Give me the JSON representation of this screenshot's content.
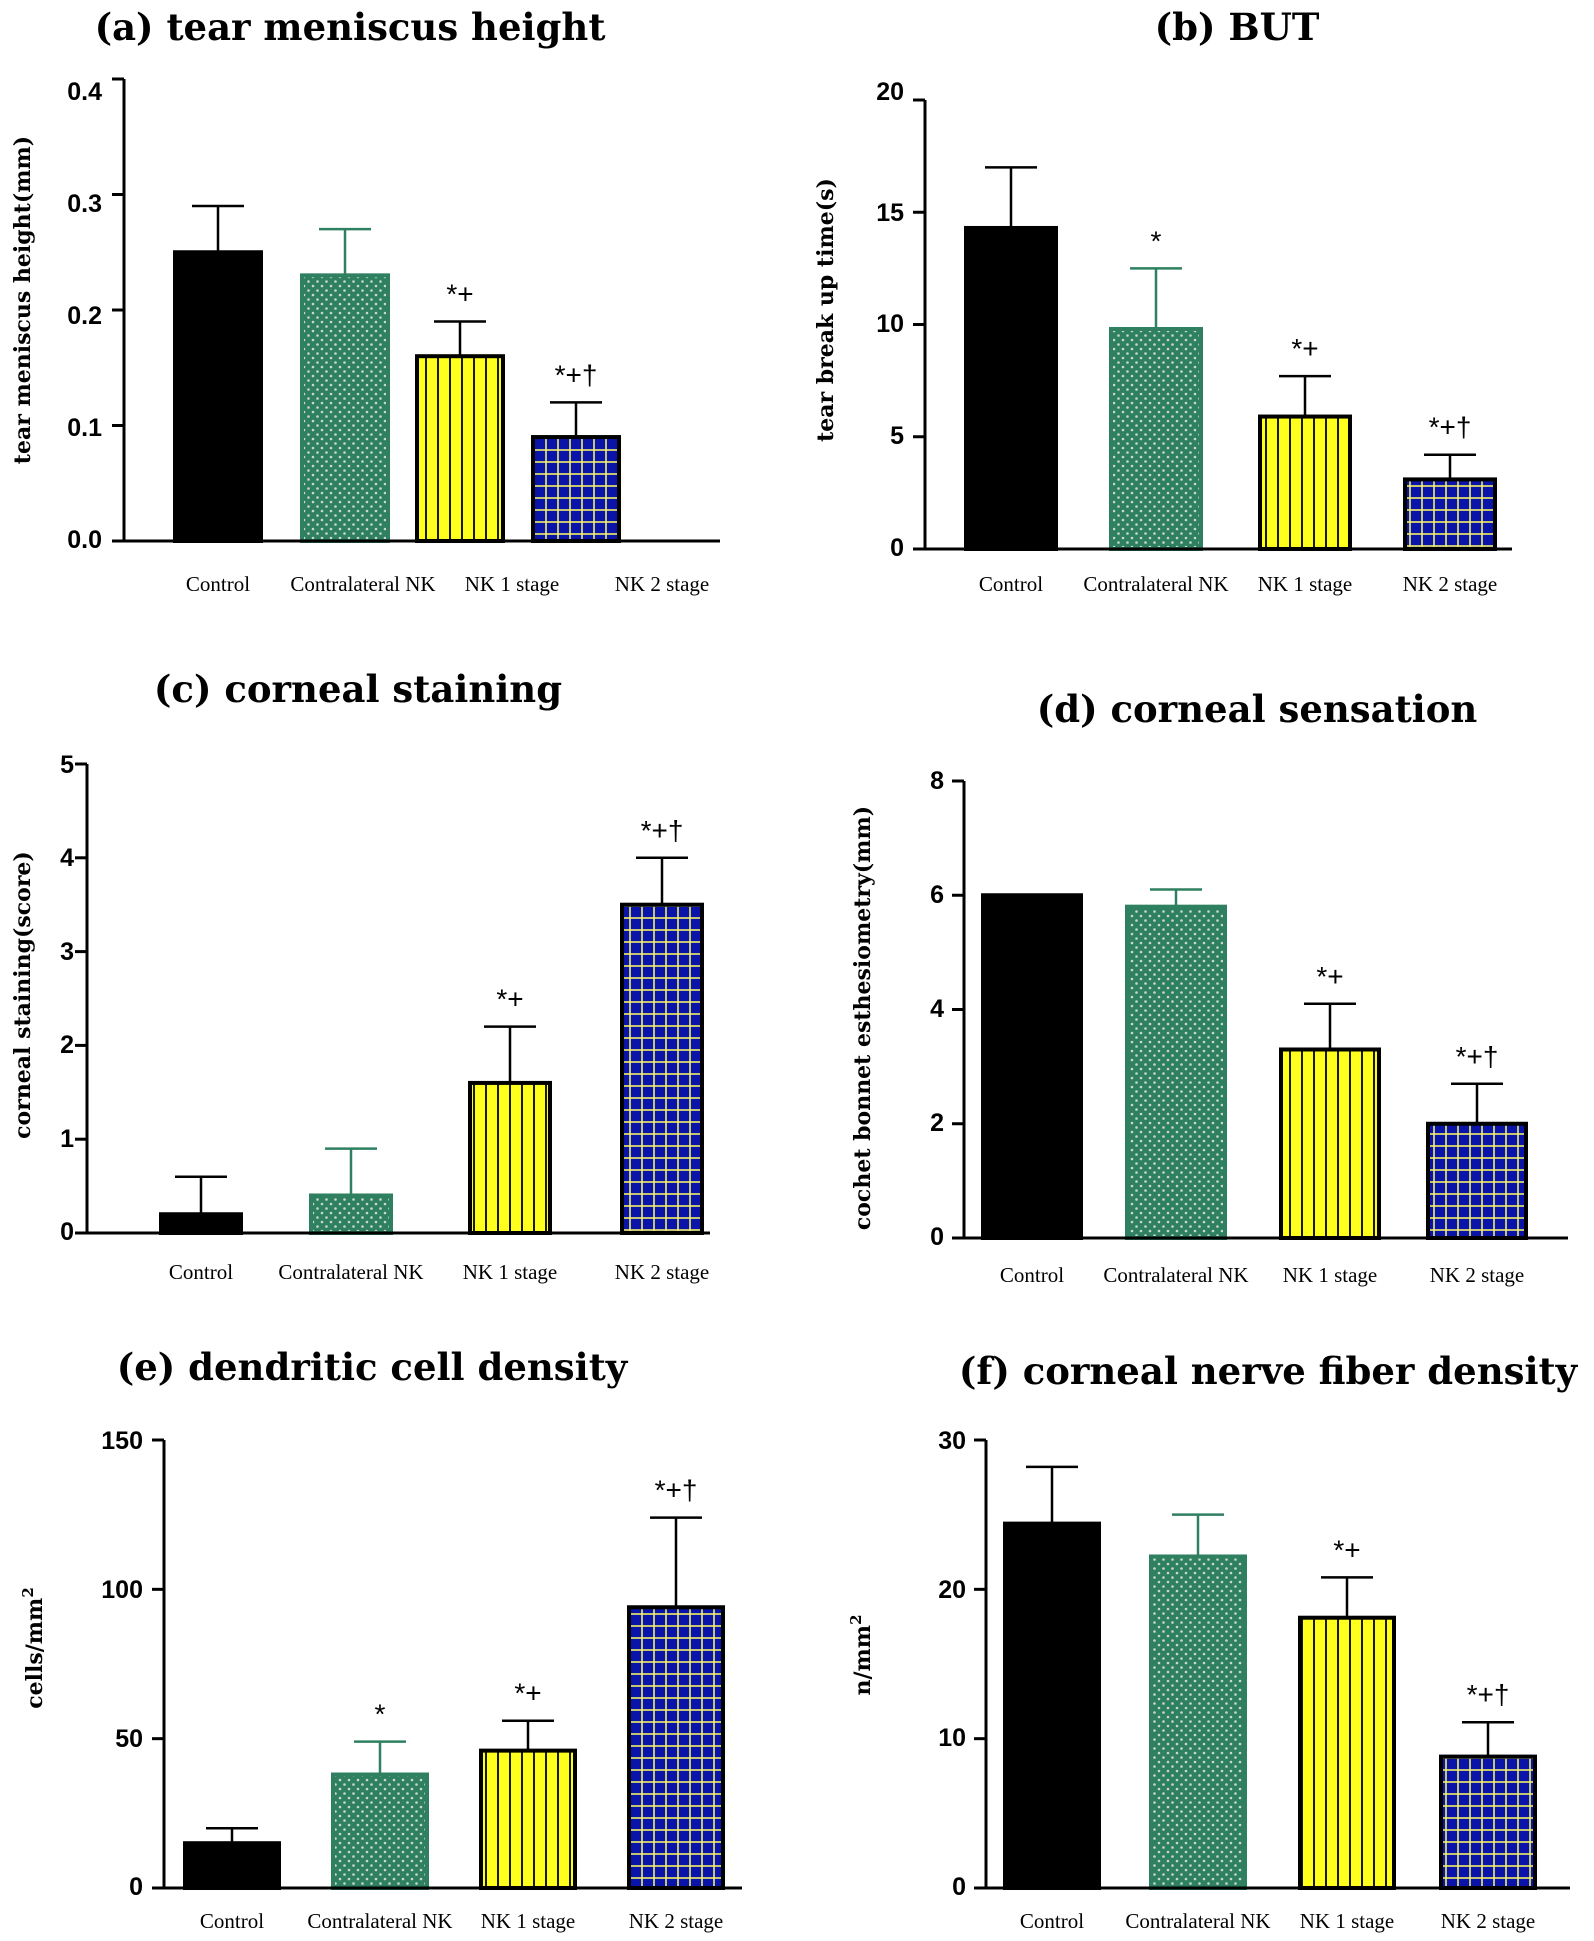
{
  "figure": {
    "colors": {
      "control": "#000000",
      "contralateral": "#2e8060",
      "contralateral_dots": "#c9d8cf",
      "nk1": "#ffff1e",
      "nk1_lines": "#000000",
      "nk2": "#0a14a8",
      "nk2_grid": "#f1f06a"
    }
  },
  "chart_data": [
    {
      "type": "bar",
      "title": "(a) tear meniscus height",
      "xlabel": "",
      "ylabel": "tear meniscus height(mm)",
      "ylim": [
        0,
        0.4
      ],
      "yticks": [
        "0.0",
        "0.1",
        "0.2",
        "0.3",
        "0.4"
      ],
      "categories": [
        "Control",
        "Contralateral NK",
        "NK 1 stage",
        "NK 2 stage"
      ],
      "values": [
        0.25,
        0.23,
        0.16,
        0.09
      ],
      "errors": [
        0.04,
        0.04,
        0.03,
        0.03
      ],
      "annotations": [
        "",
        "",
        "*+",
        "*+†"
      ]
    },
    {
      "type": "bar",
      "title": "(b) BUT",
      "xlabel": "",
      "ylabel": "tear break up time(s)",
      "ylim": [
        0,
        20
      ],
      "yticks": [
        "0",
        "5",
        "10",
        "15",
        "20"
      ],
      "categories": [
        "Control",
        "Contralateral NK",
        "NK 1 stage",
        "NK 2 stage"
      ],
      "values": [
        14.3,
        9.8,
        5.9,
        3.1
      ],
      "errors": [
        2.7,
        2.7,
        1.8,
        1.1
      ],
      "annotations": [
        "",
        "*",
        "*+",
        "*+†"
      ]
    },
    {
      "type": "bar",
      "title": "(c) corneal staining",
      "xlabel": "",
      "ylabel": "corneal staining(score)",
      "ylim": [
        0,
        5
      ],
      "yticks": [
        "0",
        "1",
        "2",
        "3",
        "4",
        "5"
      ],
      "categories": [
        "Control",
        "Contralateral NK",
        "NK 1 stage",
        "NK 2 stage"
      ],
      "values": [
        0.2,
        0.4,
        1.6,
        3.5
      ],
      "errors": [
        0.4,
        0.5,
        0.6,
        0.5
      ],
      "annotations": [
        "",
        "",
        "*+",
        "*+†"
      ]
    },
    {
      "type": "bar",
      "title": "(d) corneal sensation",
      "xlabel": "",
      "ylabel": "cochet bonnet esthesiometry(mm)",
      "ylim": [
        0,
        8
      ],
      "yticks": [
        "0",
        "2",
        "4",
        "6",
        "8"
      ],
      "categories": [
        "Control",
        "Contralateral NK",
        "NK 1 stage",
        "NK 2 stage"
      ],
      "values": [
        6.0,
        5.8,
        3.3,
        2.0
      ],
      "errors": [
        0,
        0.3,
        0.8,
        0.7
      ],
      "annotations": [
        "",
        "",
        "*+",
        "*+†"
      ]
    },
    {
      "type": "bar",
      "title": "(e) dendritic cell density",
      "xlabel": "",
      "ylabel": "cells/mm",
      "ylabel_superscript": "2",
      "ylim": [
        0,
        150
      ],
      "yticks": [
        "0",
        "50",
        "100",
        "150"
      ],
      "categories": [
        "Control",
        "Contralateral NK",
        "NK 1 stage",
        "NK 2 stage"
      ],
      "values": [
        15,
        38,
        46,
        94
      ],
      "errors": [
        5,
        11,
        10,
        30
      ],
      "annotations": [
        "",
        "*",
        "*+",
        "*+†"
      ]
    },
    {
      "type": "bar",
      "title": "(f) corneal nerve fiber density",
      "xlabel": "",
      "ylabel": "n/mm",
      "ylabel_superscript": "2",
      "ylim": [
        0,
        30
      ],
      "yticks": [
        "0",
        "10",
        "20",
        "30"
      ],
      "categories": [
        "Control",
        "Contralateral NK",
        "NK 1 stage",
        "NK 2 stage"
      ],
      "values": [
        24.4,
        22.2,
        18.1,
        8.8
      ],
      "errors": [
        3.8,
        2.8,
        2.7,
        2.3
      ],
      "annotations": [
        "",
        "",
        "*+",
        "*+†"
      ]
    }
  ]
}
